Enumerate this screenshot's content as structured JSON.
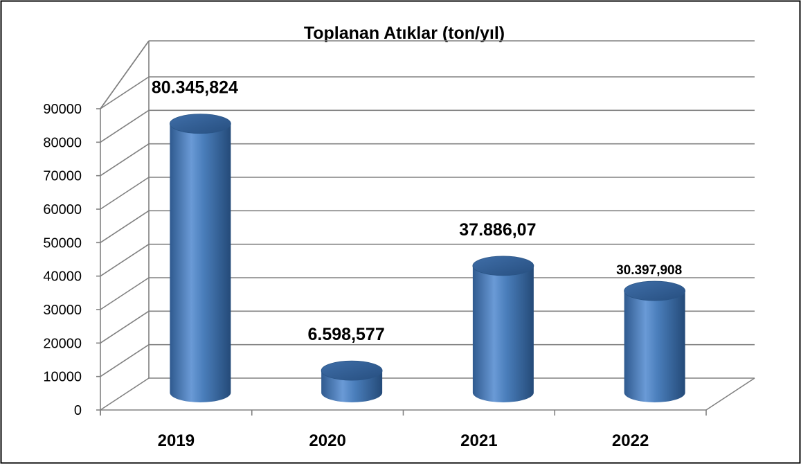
{
  "chart_data": {
    "type": "bar",
    "title": "Toplanan Atıklar (ton/yıl)",
    "categories": [
      "2019",
      "2020",
      "2021",
      "2022"
    ],
    "values": [
      80345.824,
      6598.577,
      37886.07,
      30397.908
    ],
    "data_labels": [
      "80.345,824",
      "6.598,577",
      "37.886,07",
      "30.397,908"
    ],
    "yticks": [
      "0",
      "10000",
      "20000",
      "30000",
      "40000",
      "50000",
      "60000",
      "70000",
      "80000",
      "90000"
    ],
    "ylim": [
      0,
      90000
    ],
    "xlabel": "",
    "ylabel": "",
    "grid": true,
    "legend": "none",
    "style": "3d-cylinder",
    "colors": {
      "bar": "#4a7ebb",
      "gridline": "#808080",
      "frame": "#000000"
    }
  }
}
